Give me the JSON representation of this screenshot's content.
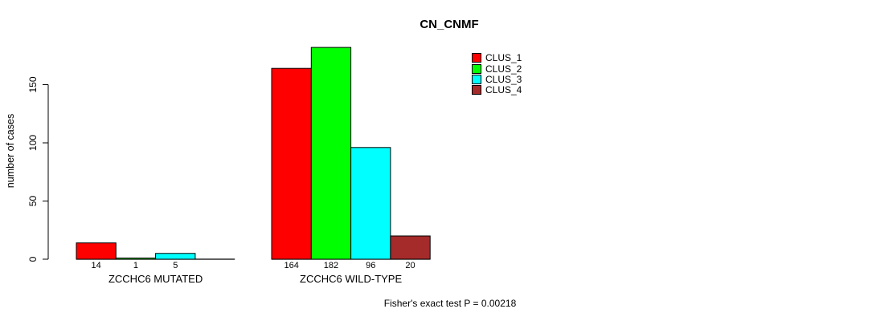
{
  "chart_data": {
    "type": "bar",
    "title": "CN_CNMF",
    "ylabel": "number of cases",
    "xlabel": "",
    "yticks": [
      0,
      50,
      100,
      150
    ],
    "ylim": [
      0,
      190
    ],
    "grid": false,
    "legend_position": "top-right",
    "groups": [
      {
        "label": "ZCCHC6 MUTATED",
        "values": [
          14,
          1,
          5,
          0
        ]
      },
      {
        "label": "ZCCHC6 WILD-TYPE",
        "values": [
          164,
          182,
          96,
          20
        ]
      }
    ],
    "series": [
      {
        "name": "CLUS_1",
        "color": "#FF0000"
      },
      {
        "name": "CLUS_2",
        "color": "#00FF00"
      },
      {
        "name": "CLUS_3",
        "color": "#00FFFF"
      },
      {
        "name": "CLUS_4",
        "color": "#A52A2A"
      }
    ],
    "annotation": "Fisher's exact test P = 0.00218"
  },
  "colors": {
    "bar_border": "#000000",
    "axis": "#000000",
    "background": "#FFFFFF"
  }
}
